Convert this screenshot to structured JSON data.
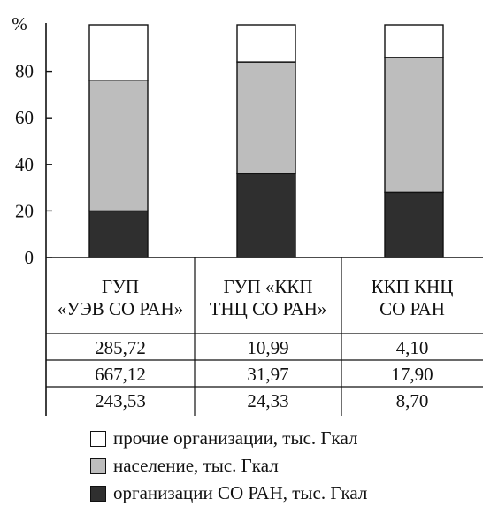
{
  "chart_data": {
    "type": "bar",
    "stacked": true,
    "y_unit_label": "%",
    "ylim": [
      0,
      100
    ],
    "yticks": [
      "0",
      "20",
      "40",
      "60",
      "80"
    ],
    "categories": [
      [
        "ГУП",
        "«УЭВ СО РАН»"
      ],
      [
        "ГУП «ККП",
        "ТНЦ СО РАН»"
      ],
      [
        "ККП КНЦ",
        "СО РАН"
      ]
    ],
    "series": [
      {
        "name": "организации СО РАН, тыс. Гкал",
        "color": "#2f2f2f",
        "values": [
          20,
          36,
          28
        ]
      },
      {
        "name": "население, тыс. Гкал",
        "color": "#bdbdbd",
        "values": [
          56,
          48,
          58
        ]
      },
      {
        "name": "прочие организации, тыс. Гкал",
        "color": "#ffffff",
        "values": [
          24,
          16,
          14
        ]
      }
    ],
    "table": [
      [
        "285,72",
        "10,99",
        "4,10"
      ],
      [
        "667,12",
        "31,97",
        "17,90"
      ],
      [
        "243,53",
        "24,33",
        "8,70"
      ]
    ],
    "legend_position": "bottom",
    "grid": false
  }
}
